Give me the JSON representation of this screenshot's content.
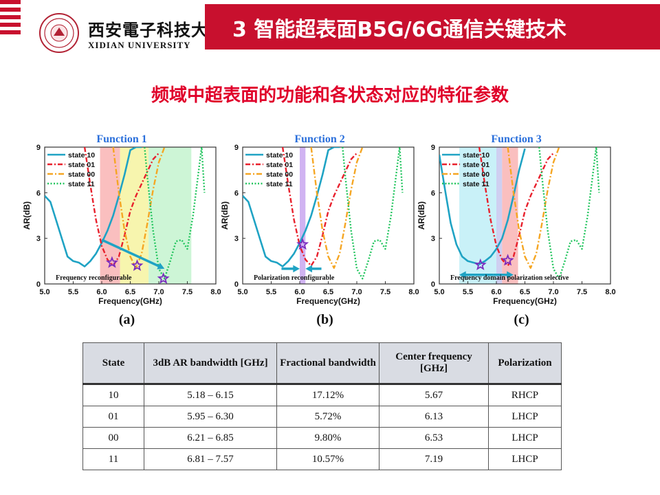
{
  "header": {
    "university_cn": "西安電子科技大學",
    "university_en": "XIDIAN UNIVERSITY",
    "title": "3 智能超表面B5G/6G通信关键技术"
  },
  "subtitle": "频域中超表面的功能和各状态对应的特征参数",
  "colors": {
    "accent": "#c8102e",
    "subtitle": "#e0002a",
    "state10": "#1fa3c4",
    "state01": "#e8202c",
    "state00": "#f5a623",
    "state11": "#22c55e"
  },
  "chart_data": [
    {
      "type": "line",
      "title": "Function 1",
      "panel": "(a)",
      "xlabel": "Frequency(GHz)",
      "ylabel": "AR(dB)",
      "xlim": [
        5.0,
        8.0
      ],
      "ylim": [
        0,
        9
      ],
      "xticks": [
        "5.0",
        "5.5",
        "6.0",
        "6.5",
        "7.0",
        "7.5",
        "8.0"
      ],
      "yticks": [
        "0",
        "3",
        "6",
        "9"
      ],
      "legend": [
        "state 10",
        "state 01",
        "state 00",
        "state 11"
      ],
      "legend_position": "top-left",
      "annotation": "Frequency reconfigurable",
      "bands": [
        {
          "from": 5.97,
          "to": 6.32,
          "color": "#f9b4b4"
        },
        {
          "from": 6.32,
          "to": 6.82,
          "color": "#f6f3a0"
        },
        {
          "from": 6.82,
          "to": 7.57,
          "color": "#c4f3cf"
        }
      ],
      "stars": [
        [
          6.18,
          1.4
        ],
        [
          6.62,
          1.2
        ],
        [
          7.08,
          0.35
        ]
      ],
      "arrows": [
        [
          [
            6.0,
            2.9
          ],
          [
            7.1,
            1.0
          ]
        ]
      ],
      "series": [
        {
          "name": "state 10",
          "x": [
            5.0,
            5.1,
            5.2,
            5.3,
            5.4,
            5.5,
            5.6,
            5.7,
            5.8,
            5.9,
            6.0,
            6.1,
            6.2,
            6.3,
            6.4,
            6.5,
            6.6,
            6.7
          ],
          "y": [
            5.8,
            5.4,
            4.2,
            3.0,
            1.8,
            1.5,
            1.4,
            1.15,
            1.5,
            2.0,
            2.7,
            3.5,
            4.5,
            5.8,
            7.2,
            8.8,
            9,
            9
          ]
        },
        {
          "name": "state 01",
          "x": [
            5.7,
            5.8,
            5.9,
            6.0,
            6.1,
            6.2,
            6.3,
            6.4,
            6.5,
            6.6,
            6.7,
            6.8,
            6.9,
            7.0
          ],
          "y": [
            9,
            6.5,
            4.2,
            2.5,
            1.6,
            1.2,
            1.8,
            3.2,
            4.8,
            5.8,
            6.6,
            7.4,
            8.2,
            8.6
          ]
        },
        {
          "name": "state 00",
          "x": [
            6.2,
            6.3,
            6.4,
            6.5,
            6.6,
            6.7,
            6.8,
            6.9,
            7.0,
            7.1
          ],
          "y": [
            9,
            6.0,
            3.5,
            1.8,
            1.05,
            2.0,
            4.0,
            6.2,
            8.0,
            9
          ]
        },
        {
          "name": "state 11",
          "x": [
            6.75,
            6.8,
            6.9,
            7.0,
            7.1,
            7.2,
            7.3,
            7.4,
            7.5,
            7.6,
            7.7,
            7.75,
            7.8
          ],
          "y": [
            9,
            7.0,
            3.5,
            1.0,
            0.35,
            1.5,
            2.8,
            2.9,
            2.3,
            4.5,
            7.5,
            9,
            6.0
          ]
        }
      ]
    },
    {
      "type": "line",
      "title": "Function 2",
      "panel": "(b)",
      "xlabel": "Frequency(GHz)",
      "ylabel": "AR(dB)",
      "xlim": [
        5.0,
        8.0
      ],
      "ylim": [
        0,
        9
      ],
      "xticks": [
        "5.0",
        "5.5",
        "6.0",
        "6.5",
        "7.0",
        "7.5",
        "8.0"
      ],
      "yticks": [
        "0",
        "3",
        "6",
        "9"
      ],
      "legend": [
        "state 10",
        "state 01",
        "state 00",
        "state 11"
      ],
      "legend_position": "top-left",
      "annotation": "Polarization reconfigurable",
      "bands": [
        {
          "from": 6.0,
          "to": 6.1,
          "color": "#c8a6f0"
        }
      ],
      "stars": [
        [
          6.05,
          2.6
        ]
      ],
      "arrows": [
        [
          [
            5.68,
            1.0
          ],
          [
            6.0,
            1.0
          ]
        ],
        [
          [
            6.38,
            1.0
          ],
          [
            6.1,
            1.0
          ]
        ]
      ],
      "series": [
        {
          "name": "state 10",
          "x": [
            5.0,
            5.1,
            5.2,
            5.3,
            5.4,
            5.5,
            5.6,
            5.7,
            5.8,
            5.9,
            6.0,
            6.1,
            6.2,
            6.3,
            6.4,
            6.5,
            6.6,
            6.7
          ],
          "y": [
            5.8,
            5.4,
            4.2,
            3.0,
            1.8,
            1.5,
            1.4,
            1.15,
            1.5,
            2.0,
            2.7,
            3.5,
            4.5,
            5.8,
            7.2,
            8.8,
            9,
            9
          ]
        },
        {
          "name": "state 01",
          "x": [
            5.7,
            5.8,
            5.9,
            6.0,
            6.1,
            6.2,
            6.3,
            6.4,
            6.5,
            6.6,
            6.7,
            6.8,
            6.9,
            7.0
          ],
          "y": [
            9,
            6.5,
            4.2,
            2.5,
            1.6,
            1.2,
            1.8,
            3.2,
            4.8,
            5.8,
            6.6,
            7.4,
            8.2,
            8.6
          ]
        },
        {
          "name": "state 00",
          "x": [
            6.2,
            6.3,
            6.4,
            6.5,
            6.6,
            6.7,
            6.8,
            6.9,
            7.0,
            7.1
          ],
          "y": [
            9,
            6.0,
            3.5,
            1.8,
            1.05,
            2.0,
            4.0,
            6.2,
            8.0,
            9
          ]
        },
        {
          "name": "state 11",
          "x": [
            6.75,
            6.8,
            6.9,
            7.0,
            7.1,
            7.2,
            7.3,
            7.4,
            7.5,
            7.6,
            7.7,
            7.75,
            7.8
          ],
          "y": [
            9,
            7.0,
            3.5,
            1.0,
            0.35,
            1.5,
            2.8,
            2.9,
            2.3,
            4.5,
            7.5,
            9,
            6.0
          ]
        }
      ]
    },
    {
      "type": "line",
      "title": "Function 3",
      "panel": "(c)",
      "xlabel": "Frequency(GHz)",
      "ylabel": "AR(dB)",
      "xlim": [
        5.0,
        8.0
      ],
      "ylim": [
        0,
        9
      ],
      "xticks": [
        "5.0",
        "5.5",
        "6.0",
        "6.5",
        "7.0",
        "7.5",
        "8.0"
      ],
      "yticks": [
        "0",
        "3",
        "6",
        "9"
      ],
      "legend": [
        "state 10",
        "state 01",
        "state 00",
        "state 11"
      ],
      "legend_position": "top-left",
      "annotation": "Frequency domain polarization selective",
      "bands": [
        {
          "from": 5.35,
          "to": 6.0,
          "color": "#bfeff7"
        },
        {
          "from": 6.0,
          "to": 6.1,
          "color": "#c7c7ef"
        },
        {
          "from": 6.1,
          "to": 6.38,
          "color": "#f9b4b4"
        }
      ],
      "stars": [
        [
          5.72,
          1.25
        ],
        [
          6.2,
          1.55
        ]
      ],
      "arrows": [
        [
          [
            5.95,
            0.6
          ],
          [
            5.35,
            0.6
          ]
        ],
        [
          [
            5.95,
            0.6
          ],
          [
            6.3,
            0.6
          ]
        ]
      ],
      "series": [
        {
          "name": "state 10",
          "x": [
            5.0,
            5.1,
            5.2,
            5.3,
            5.4,
            5.5,
            5.6,
            5.7,
            5.8,
            5.9,
            6.0,
            6.1,
            6.2,
            6.3,
            6.4,
            6.5
          ],
          "y": [
            8.5,
            6.2,
            4.0,
            2.6,
            1.8,
            1.5,
            1.4,
            1.3,
            1.5,
            1.8,
            2.3,
            3.0,
            4.2,
            5.8,
            7.5,
            8.9
          ]
        },
        {
          "name": "state 01",
          "x": [
            5.7,
            5.8,
            5.9,
            6.0,
            6.1,
            6.2,
            6.3,
            6.4,
            6.5,
            6.6,
            6.7,
            6.8,
            6.9,
            7.0
          ],
          "y": [
            9,
            6.5,
            4.2,
            2.5,
            1.6,
            1.2,
            1.8,
            3.2,
            4.8,
            5.8,
            6.6,
            7.4,
            8.2,
            8.6
          ]
        },
        {
          "name": "state 00",
          "x": [
            6.2,
            6.3,
            6.4,
            6.5,
            6.6,
            6.7,
            6.8,
            6.9,
            7.0,
            7.1
          ],
          "y": [
            9,
            6.0,
            3.5,
            1.8,
            1.05,
            2.0,
            4.0,
            6.2,
            8.0,
            9
          ]
        },
        {
          "name": "state 11",
          "x": [
            6.75,
            6.8,
            6.9,
            7.0,
            7.1,
            7.2,
            7.3,
            7.4,
            7.5,
            7.6,
            7.7,
            7.75,
            7.8
          ],
          "y": [
            9,
            7.0,
            3.5,
            1.0,
            0.35,
            1.5,
            2.8,
            2.9,
            2.3,
            4.5,
            7.5,
            9,
            6.0
          ]
        }
      ]
    },
    {
      "type": "table",
      "columns": [
        "State",
        "3dB AR bandwidth [GHz]",
        "Fractional bandwidth",
        "Center frequency [GHz]",
        "Polarization"
      ],
      "rows": [
        [
          "10",
          "5.18 – 6.15",
          "17.12%",
          "5.67",
          "RHCP"
        ],
        [
          "01",
          "5.95 – 6.30",
          "5.72%",
          "6.13",
          "LHCP"
        ],
        [
          "00",
          "6.21 – 6.85",
          "9.80%",
          "6.53",
          "LHCP"
        ],
        [
          "11",
          "6.81 – 7.57",
          "10.57%",
          "7.19",
          "LHCP"
        ]
      ]
    }
  ]
}
